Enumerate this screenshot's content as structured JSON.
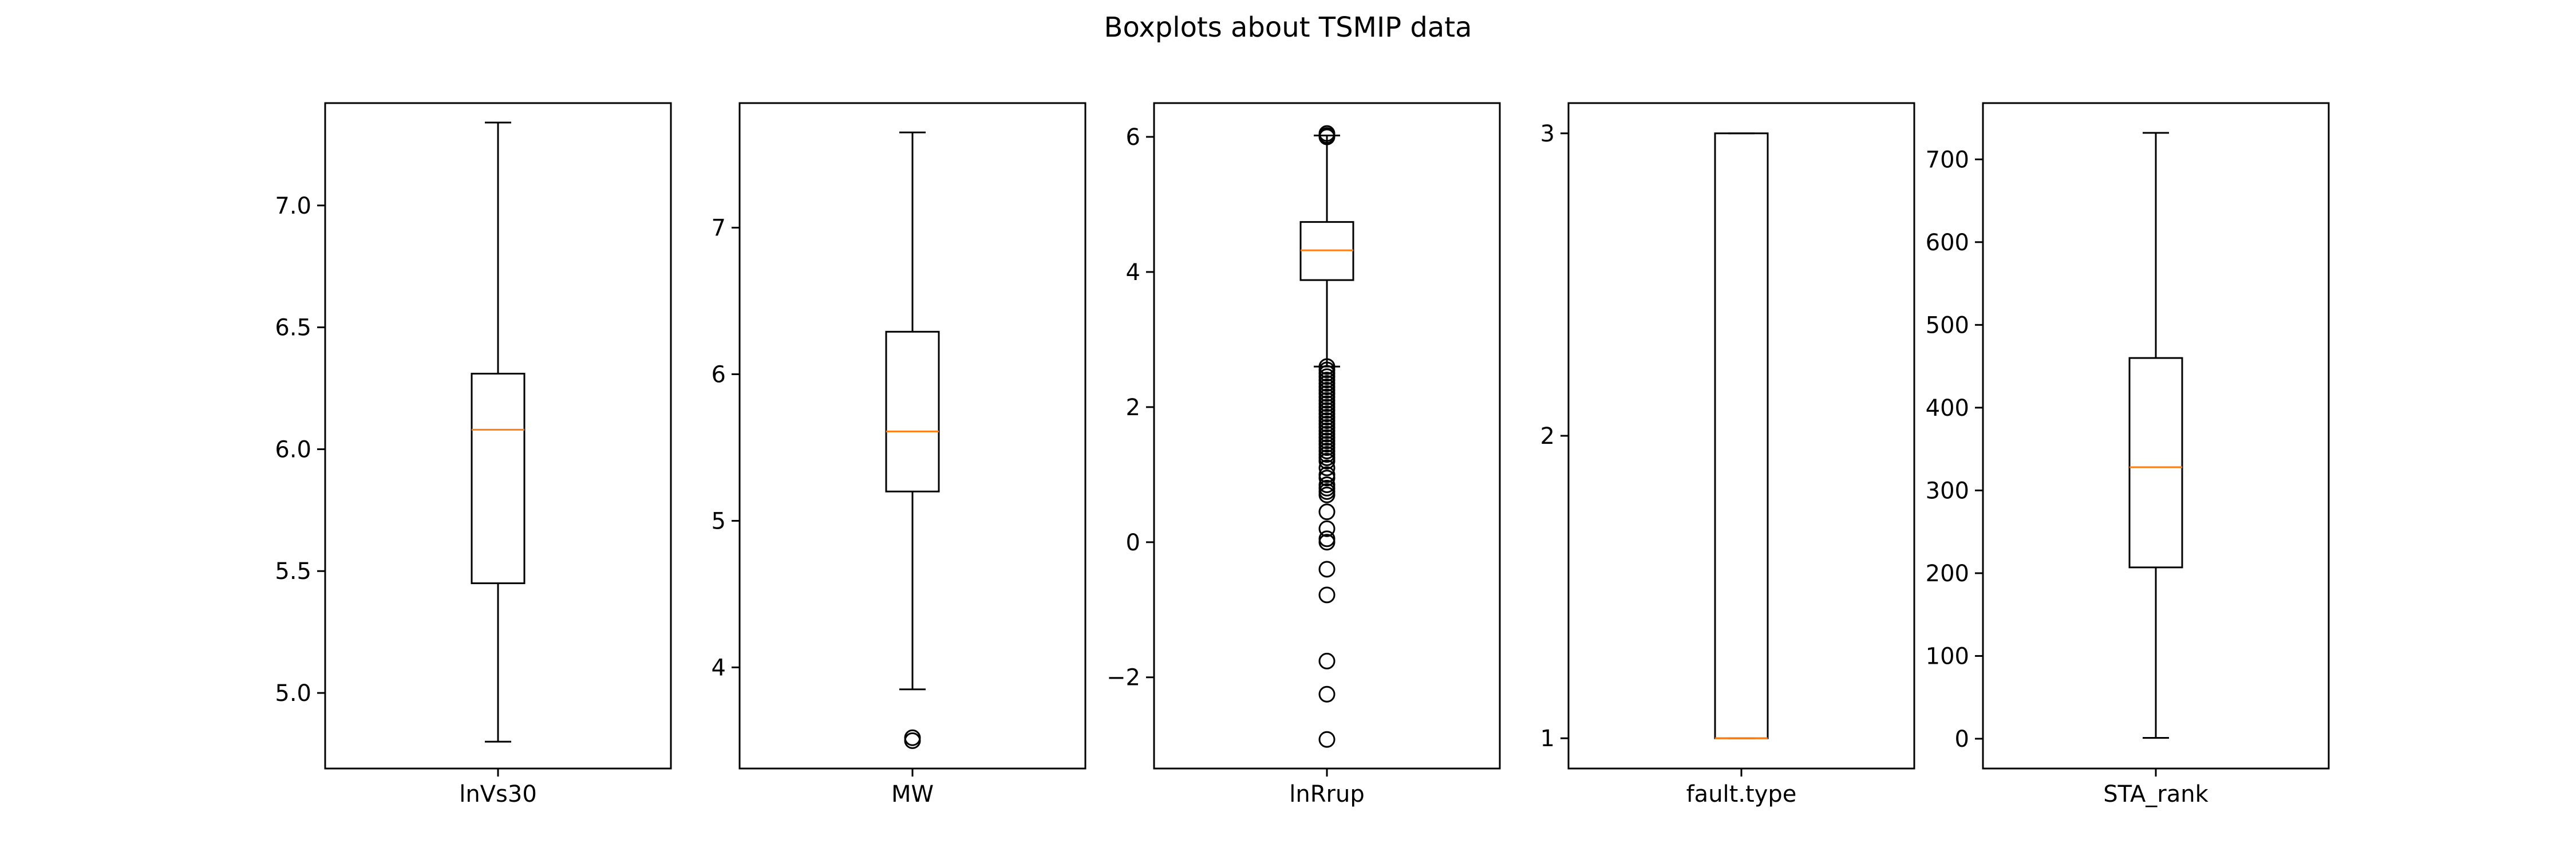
{
  "title": "Boxplots about TSMIP data",
  "colors": {
    "box": "#000000",
    "median": "#ff7f0e",
    "background": "#ffffff"
  },
  "chart_data": [
    {
      "type": "boxplot",
      "category": "lnVs30",
      "ylim": [
        4.69,
        7.42
      ],
      "yticks": [
        5.0,
        5.5,
        6.0,
        6.5,
        7.0
      ],
      "ytick_labels": [
        "5.0",
        "5.5",
        "6.0",
        "6.5",
        "7.0"
      ],
      "whisker_low": 4.8,
      "q1": 5.45,
      "median": 6.08,
      "q3": 6.31,
      "whisker_high": 7.34,
      "outliers": []
    },
    {
      "type": "boxplot",
      "category": "MW",
      "ylim": [
        3.31,
        7.85
      ],
      "yticks": [
        4,
        5,
        6,
        7
      ],
      "ytick_labels": [
        "4",
        "5",
        "6",
        "7"
      ],
      "whisker_low": 3.85,
      "q1": 5.2,
      "median": 5.61,
      "q3": 6.29,
      "whisker_high": 7.65,
      "outliers": [
        3.5,
        3.52
      ]
    },
    {
      "type": "boxplot",
      "category": "lnRrup",
      "ylim": [
        -3.35,
        6.5
      ],
      "yticks": [
        -2,
        0,
        2,
        4,
        6
      ],
      "ytick_labels": [
        "−2",
        "0",
        "2",
        "4",
        "6"
      ],
      "whisker_low": 2.6,
      "q1": 3.88,
      "median": 4.32,
      "q3": 4.74,
      "whisker_high": 6.02,
      "outliers": [
        6.05,
        6.02,
        6.0,
        2.6,
        2.55,
        2.5,
        2.45,
        2.4,
        2.35,
        2.3,
        2.25,
        2.2,
        2.15,
        2.1,
        2.05,
        2.0,
        1.95,
        1.9,
        1.85,
        1.8,
        1.75,
        1.7,
        1.65,
        1.6,
        1.55,
        1.5,
        1.45,
        1.4,
        1.35,
        1.3,
        1.25,
        1.2,
        1.1,
        1.0,
        0.95,
        0.85,
        0.8,
        0.75,
        0.7,
        0.45,
        0.2,
        0.05,
        0.0,
        -0.4,
        -0.78,
        -1.76,
        -2.25,
        -2.92
      ]
    },
    {
      "type": "boxplot",
      "category": "fault.type",
      "ylim": [
        0.9,
        3.1
      ],
      "yticks": [
        1,
        2,
        3
      ],
      "ytick_labels": [
        "1",
        "2",
        "3"
      ],
      "whisker_low": 1,
      "q1": 1,
      "median": 1,
      "q3": 3,
      "whisker_high": 3,
      "outliers": []
    },
    {
      "type": "boxplot",
      "category": "STA_rank",
      "ylim": [
        -36,
        768
      ],
      "yticks": [
        0,
        100,
        200,
        300,
        400,
        500,
        600,
        700
      ],
      "ytick_labels": [
        "0",
        "100",
        "200",
        "300",
        "400",
        "500",
        "600",
        "700"
      ],
      "whisker_low": 1,
      "q1": 207,
      "median": 328,
      "q3": 460,
      "whisker_high": 732,
      "outliers": []
    }
  ]
}
